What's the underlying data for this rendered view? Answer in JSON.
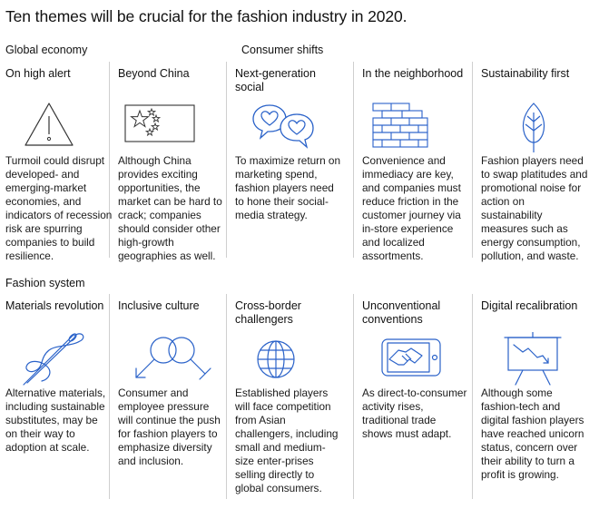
{
  "title": "Ten themes will be crucial for the fashion industry in 2020.",
  "sections": {
    "global_economy": "Global economy",
    "consumer_shifts": "Consumer shifts",
    "fashion_system": "Fashion system"
  },
  "colors": {
    "icon": "#2a62c9",
    "separator": "#cfcfcf",
    "text": "#111111"
  },
  "themes": [
    {
      "title": "On high alert",
      "icon": "warning-triangle-icon",
      "description": "Turmoil could disrupt developed- and emerging-market economies, and indicators of recession risk are spurring companies to build resilience."
    },
    {
      "title": "Beyond China",
      "icon": "china-flag-icon",
      "description": "Although China provides exciting opportunities, the market can be hard to crack; companies should consider other high-growth geographies as well."
    },
    {
      "title": "Next-generation social",
      "icon": "heart-chat-bubbles-icon",
      "description": "To maximize return on marketing spend, fashion players need to hone their social-media strategy."
    },
    {
      "title": "In the neighborhood",
      "icon": "brick-wall-icon",
      "description": "Convenience and immediacy are key, and companies must reduce friction in the customer journey via in-store experience and localized assortments."
    },
    {
      "title": "Sustainability first",
      "icon": "leaf-icon",
      "description": "Fashion players need to swap platitudes and promotional noise for action on sustainability measures such as energy consumption, pollution, and waste."
    },
    {
      "title": "Materials revolution",
      "icon": "needle-thread-icon",
      "description": "Alternative materials, including sustainable substitutes, may be on their way to adoption at scale."
    },
    {
      "title": "Inclusive culture",
      "icon": "gender-symbols-icon",
      "description": "Consumer and employee pressure will continue the push for fashion players to emphasize diversity and inclusion."
    },
    {
      "title": "Cross-border challengers",
      "icon": "globe-icon",
      "description": "Established players will face competition from Asian challengers, including small and medium-size enter-prises selling directly to global consumers."
    },
    {
      "title": "Unconventional conventions",
      "icon": "phone-handshake-icon",
      "description": "As direct-to-consumer activity rises, traditional trade shows must adapt."
    },
    {
      "title": "Digital recalibration",
      "icon": "declining-chart-board-icon",
      "description": "Although some fashion-tech and digital fashion players have reached unicorn status, concern over their ability to turn a profit is growing."
    }
  ]
}
